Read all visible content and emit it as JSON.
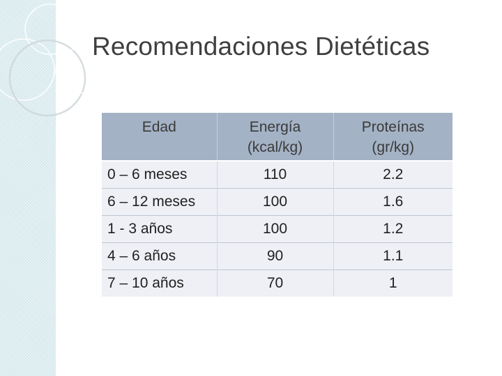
{
  "slide": {
    "title": "Recomendaciones Dietéticas"
  },
  "table": {
    "headers": {
      "age": "Edad",
      "energy": "Energía\n(kcal/kg)",
      "protein": "Proteínas\n(gr/kg)"
    },
    "rows": [
      {
        "age": "0 – 6 meses",
        "energy": "110",
        "protein": "2.2"
      },
      {
        "age": "6 – 12 meses",
        "energy": "100",
        "protein": "1.6"
      },
      {
        "age": "1 - 3 años",
        "energy": "100",
        "protein": "1.2"
      },
      {
        "age": "4 – 6 años",
        "energy": "90",
        "protein": "1.1"
      },
      {
        "age": "7 – 10 años",
        "energy": "70",
        "protein": "1"
      }
    ]
  },
  "colors": {
    "header_bg": "#a4b2c5",
    "row_bg": "#eef0f5",
    "side_strip": "#dfeef2",
    "title_text": "#3f3f3f"
  }
}
